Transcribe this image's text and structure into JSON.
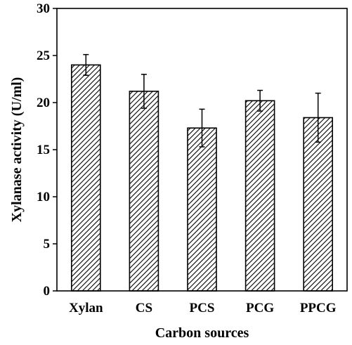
{
  "chart_data": {
    "type": "bar",
    "categories": [
      "Xylan",
      "CS",
      "PCS",
      "PCG",
      "PPCG"
    ],
    "values": [
      24.0,
      21.2,
      17.3,
      20.2,
      18.4
    ],
    "errors": [
      1.1,
      1.8,
      2.0,
      1.1,
      2.6
    ],
    "xlabel": "Carbon sources",
    "ylabel": "Xylanase activity (U/ml)",
    "ylim": [
      0,
      30
    ],
    "yticks": [
      0,
      5,
      10,
      15,
      20,
      25,
      30
    ],
    "grid": false,
    "bar_fill": "diagonal-hatch",
    "colors": {
      "bar_stroke": "#000000",
      "hatch": "#000000",
      "axis": "#000000",
      "background": "#ffffff"
    }
  }
}
